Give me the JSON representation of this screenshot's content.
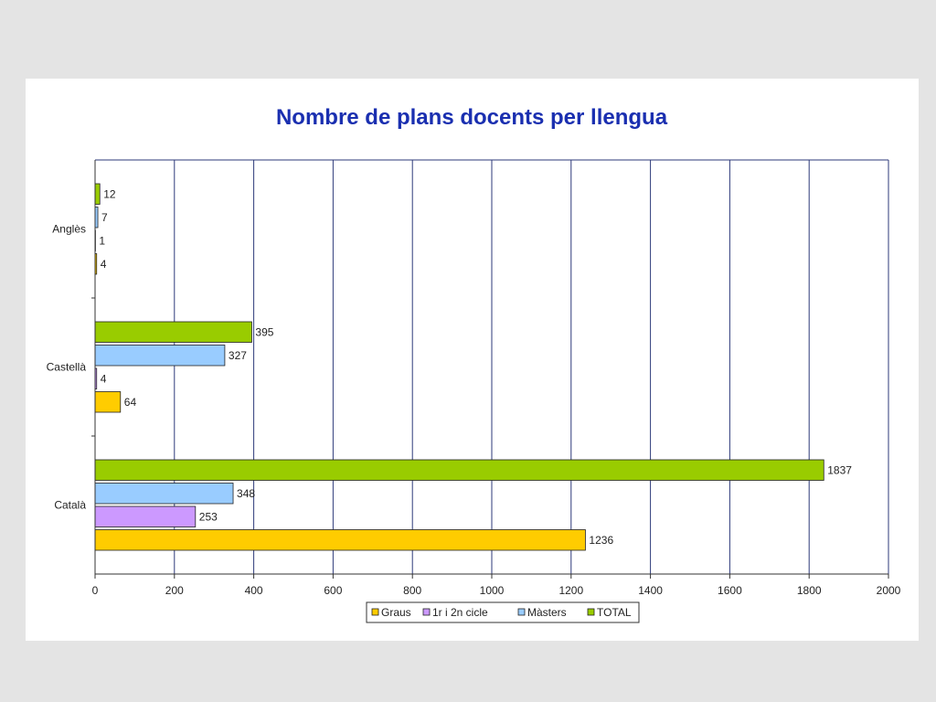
{
  "chart_data": {
    "type": "bar",
    "orientation": "horizontal",
    "title": "Nombre de plans docents per llengua",
    "xlabel": "",
    "ylabel": "",
    "categories": [
      "Anglès",
      "Castellà",
      "Català"
    ],
    "xlim": [
      0,
      2000
    ],
    "xticks": [
      0,
      200,
      400,
      600,
      800,
      1000,
      1200,
      1400,
      1600,
      1800,
      2000
    ],
    "grid": "vertical",
    "legend": "bottom",
    "series": [
      {
        "name": "Graus",
        "color": "#ffcc00",
        "values": [
          4,
          64,
          1236
        ]
      },
      {
        "name": "1r i 2n cicle",
        "color": "#cc99ff",
        "values": [
          1,
          4,
          253
        ]
      },
      {
        "name": "Màsters",
        "color": "#99ccff",
        "values": [
          7,
          327,
          348
        ]
      },
      {
        "name": "TOTAL",
        "color": "#99cc00",
        "values": [
          12,
          395,
          1837
        ]
      }
    ]
  }
}
